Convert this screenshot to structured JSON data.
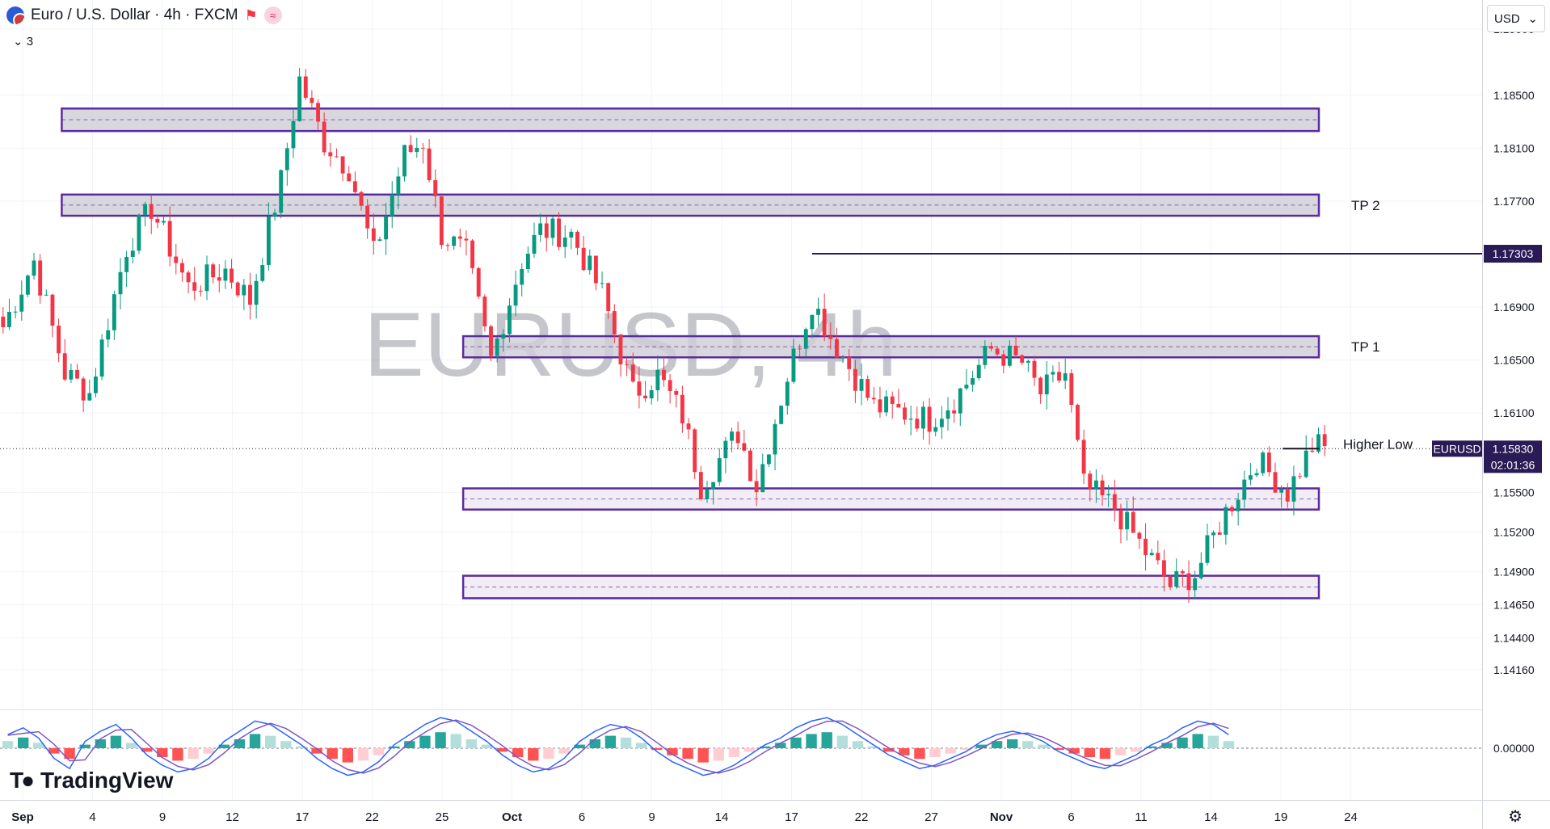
{
  "header": {
    "title": "Euro / U.S. Dollar · 4h · FXCM",
    "indicator_count": "3",
    "currency": "USD",
    "logo_text": "TradingView"
  },
  "icons": {
    "symbol": "eur-usd-flag-icon",
    "flag": "red-flag-icon",
    "wave": "wave-icon",
    "chevron": "chevron-down-icon",
    "settings": "gear-icon"
  },
  "colors": {
    "bull": "#089981",
    "bear": "#f23645",
    "zone_border": "#5b2c9e",
    "zone_fill": "#cfcdd6",
    "zone_fill_light": "#efe9f3",
    "macd_line": "#2962ff",
    "signal_line": "#7e57c2"
  },
  "chart_data": {
    "type": "candlestick",
    "symbol": "EURUSD",
    "timeframe": "4h",
    "watermark": "EURUSD, 4h",
    "x_tick_labels": [
      "Sep",
      "4",
      "9",
      "12",
      "17",
      "22",
      "25",
      "Oct",
      "6",
      "9",
      "14",
      "17",
      "22",
      "27",
      "Nov",
      "6",
      "11",
      "14",
      "19",
      "24"
    ],
    "y_tick_labels": [
      "1.19000",
      "1.18500",
      "1.18100",
      "1.17700",
      "1.16900",
      "1.16500",
      "1.16100",
      "1.15500",
      "1.15200",
      "1.14900",
      "1.14650",
      "1.14400",
      "1.14160"
    ],
    "y_ticks": [
      1.19,
      1.185,
      1.181,
      1.177,
      1.169,
      1.165,
      1.161,
      1.155,
      1.152,
      1.149,
      1.1465,
      1.144,
      1.1416
    ],
    "ylim": [
      1.1386,
      1.1922
    ],
    "bars_visible": 240,
    "anchor_closes": [
      [
        0,
        1.1675
      ],
      [
        5,
        1.1725
      ],
      [
        10,
        1.164
      ],
      [
        14,
        1.1625
      ],
      [
        20,
        1.1735
      ],
      [
        24,
        1.1765
      ],
      [
        30,
        1.1705
      ],
      [
        36,
        1.1718
      ],
      [
        40,
        1.1695
      ],
      [
        45,
        1.1785
      ],
      [
        48,
        1.1862
      ],
      [
        52,
        1.1815
      ],
      [
        56,
        1.1795
      ],
      [
        60,
        1.173
      ],
      [
        65,
        1.1805
      ],
      [
        68,
        1.1815
      ],
      [
        71,
        1.1745
      ],
      [
        75,
        1.173
      ],
      [
        79,
        1.165
      ],
      [
        84,
        1.1725
      ],
      [
        87,
        1.1748
      ],
      [
        92,
        1.1745
      ],
      [
        97,
        1.17
      ],
      [
        102,
        1.1625
      ],
      [
        106,
        1.1638
      ],
      [
        110,
        1.1608
      ],
      [
        113,
        1.1555
      ],
      [
        119,
        1.1595
      ],
      [
        122,
        1.1555
      ],
      [
        127,
        1.1638
      ],
      [
        131,
        1.1695
      ],
      [
        134,
        1.1668
      ],
      [
        137,
        1.1645
      ],
      [
        141,
        1.1615
      ],
      [
        146,
        1.161
      ],
      [
        150,
        1.1605
      ],
      [
        154,
        1.162
      ],
      [
        160,
        1.1658
      ],
      [
        165,
        1.1648
      ],
      [
        168,
        1.1625
      ],
      [
        172,
        1.164
      ],
      [
        175,
        1.1555
      ],
      [
        180,
        1.1538
      ],
      [
        185,
        1.1505
      ],
      [
        189,
        1.148
      ],
      [
        193,
        1.1488
      ],
      [
        198,
        1.1535
      ],
      [
        203,
        1.1575
      ],
      [
        208,
        1.155
      ],
      [
        212,
        1.1585
      ],
      [
        214,
        1.1585
      ]
    ],
    "current_price": "1.15830",
    "countdown": "02:01:36",
    "symbol_tag": "EURUSD",
    "price_level_label": "1.17303",
    "price_level": 1.17303,
    "zones": [
      {
        "low": 1.1823,
        "high": 1.184,
        "start_bar": 10,
        "end_bar": 240,
        "style": "dark"
      },
      {
        "low": 1.1759,
        "high": 1.1775,
        "start_bar": 10,
        "end_bar": 240,
        "style": "dark",
        "label": "TP 2"
      },
      {
        "low": 1.1652,
        "high": 1.1668,
        "start_bar": 75,
        "end_bar": 240,
        "style": "dark",
        "label": "TP 1"
      },
      {
        "low": 1.1537,
        "high": 1.1553,
        "start_bar": 75,
        "end_bar": 240,
        "style": "light"
      },
      {
        "low": 1.147,
        "high": 1.1487,
        "start_bar": 75,
        "end_bar": 240,
        "style": "light"
      }
    ],
    "higher_low": {
      "label": "Higher Low",
      "price": 1.1583,
      "start_bar": 208,
      "end_bar": 240
    },
    "macd": {
      "zero_label": "0.00000",
      "histogram": [
        4,
        6,
        3,
        -3,
        -6,
        2,
        5,
        7,
        3,
        -2,
        -5,
        -7,
        -6,
        -3,
        2,
        5,
        8,
        7,
        4,
        1,
        -3,
        -6,
        -8,
        -7,
        -4,
        1,
        4,
        7,
        9,
        8,
        5,
        2,
        -2,
        -5,
        -7,
        -6,
        -3,
        2,
        5,
        7,
        6,
        3,
        -1,
        -4,
        -6,
        -8,
        -7,
        -5,
        -2,
        1,
        3,
        6,
        8,
        9,
        7,
        4,
        1,
        -2,
        -4,
        -6,
        -5,
        -3,
        -1,
        2,
        4,
        5,
        4,
        2,
        -1,
        -3,
        -5,
        -6,
        -4,
        -2,
        1,
        3,
        6,
        8,
        7,
        4
      ]
    }
  }
}
